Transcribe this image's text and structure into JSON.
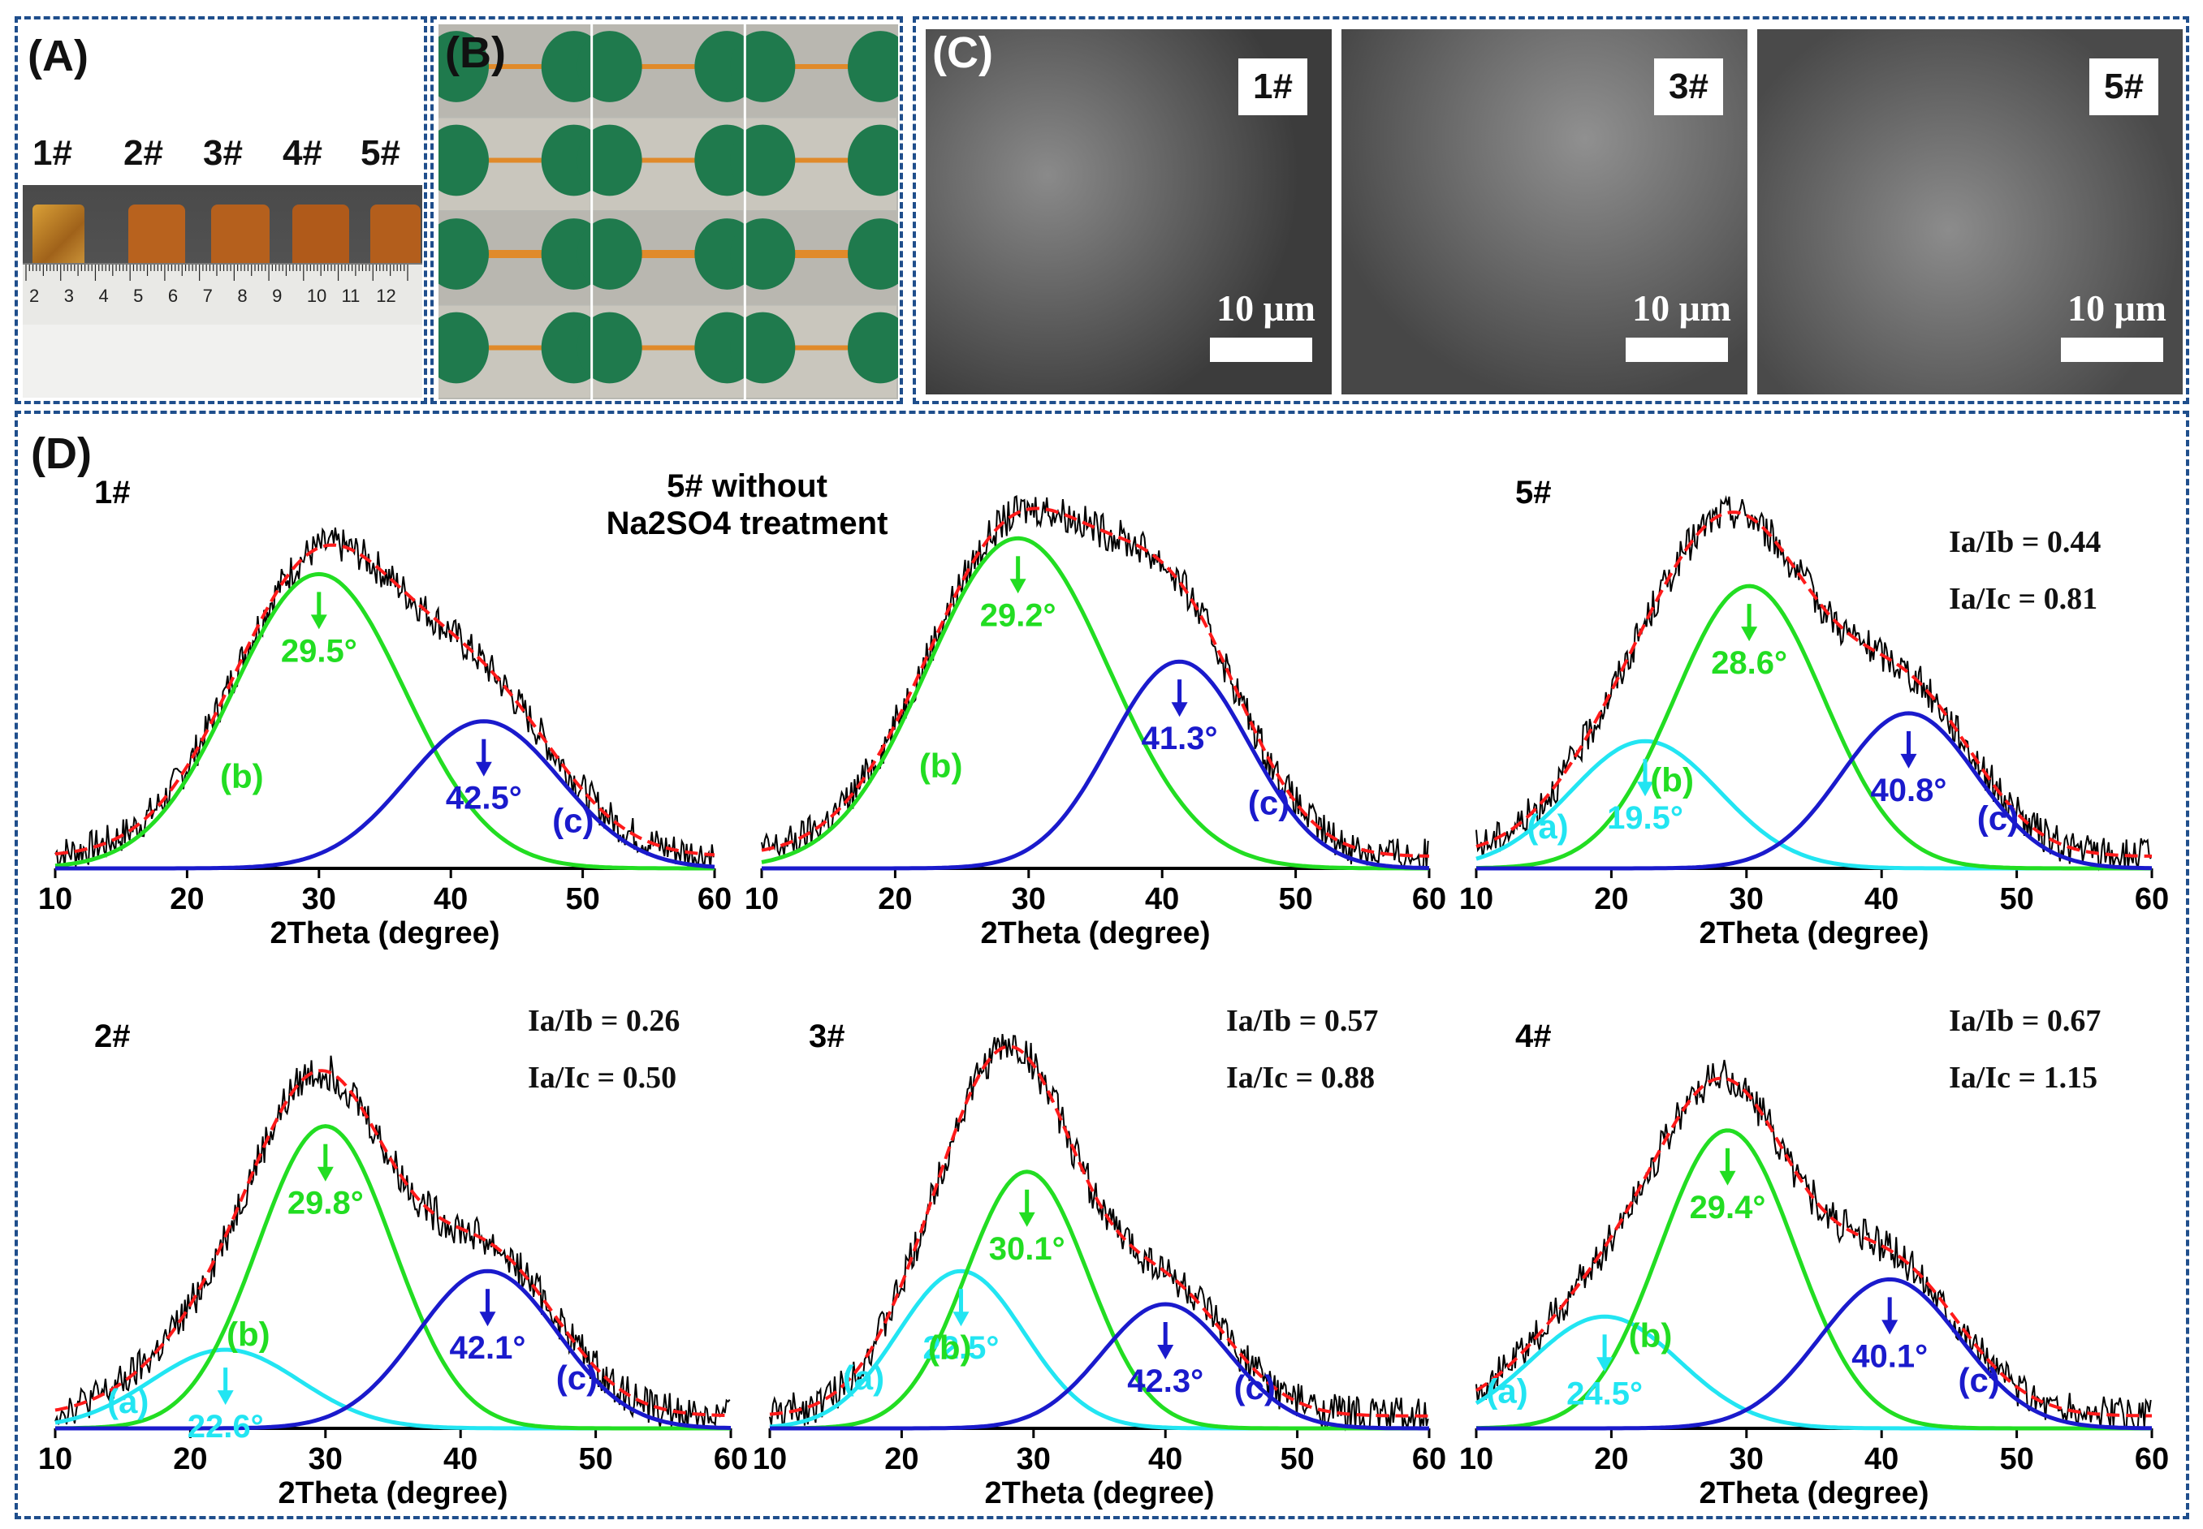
{
  "panels": {
    "A": {
      "label": "(A)",
      "samples": [
        "1#",
        "2#",
        "3#",
        "4#",
        "5#"
      ],
      "ruler_numbers": [
        "2",
        "3",
        "4",
        "5",
        "6",
        "7",
        "8",
        "9",
        "10",
        "11",
        "12"
      ]
    },
    "B": {
      "label": "(B)"
    },
    "C": {
      "label": "(C)",
      "images": [
        {
          "tag": "1#",
          "scale": "10 μm"
        },
        {
          "tag": "3#",
          "scale": "10 μm"
        },
        {
          "tag": "5#",
          "scale": "10 μm"
        }
      ]
    },
    "D": {
      "label": "(D)"
    }
  },
  "colors": {
    "raw": "#000000",
    "fit": "#ff1a1a",
    "peak_a": "#22e5f2",
    "peak_b": "#22dd22",
    "peak_c": "#1a1acc",
    "frame": "#1f4e8c"
  },
  "chart_data": [
    {
      "type": "line",
      "title": "1#",
      "xlabel": "2Theta (degree)",
      "xlim": [
        10,
        60
      ],
      "xticks": [
        10,
        20,
        30,
        40,
        50,
        60
      ],
      "ratios": [],
      "peaks": [
        {
          "id": "b",
          "label": "(b)",
          "position": "29.5°",
          "center": 30.0,
          "sigma": 6.5,
          "height": 0.74
        },
        {
          "id": "c",
          "label": "(c)",
          "position": "42.5°",
          "center": 42.5,
          "sigma": 5.8,
          "height": 0.37
        }
      ]
    },
    {
      "type": "line",
      "title": "5# without Na2SO4 treatment",
      "xlabel": "2Theta (degree)",
      "xlim": [
        10,
        60
      ],
      "xticks": [
        10,
        20,
        30,
        40,
        50,
        60
      ],
      "ratios": [],
      "peaks": [
        {
          "id": "b",
          "label": "(b)",
          "position": "29.2°",
          "center": 29.2,
          "sigma": 6.8,
          "height": 0.83
        },
        {
          "id": "c",
          "label": "(c)",
          "position": "41.3°",
          "center": 41.3,
          "sigma": 5.2,
          "height": 0.52
        }
      ]
    },
    {
      "type": "line",
      "title": "5#",
      "xlabel": "2Theta (degree)",
      "xlim": [
        10,
        60
      ],
      "xticks": [
        10,
        20,
        30,
        40,
        50,
        60
      ],
      "ratios": [
        "Ia/Ib = 0.44",
        "Ia/Ic = 0.81"
      ],
      "peaks": [
        {
          "id": "a",
          "label": "(a)",
          "position": "19.5°",
          "center": 22.5,
          "sigma": 5.5,
          "height": 0.32
        },
        {
          "id": "b",
          "label": "(b)",
          "position": "28.6°",
          "center": 30.2,
          "sigma": 5.5,
          "height": 0.71
        },
        {
          "id": "c",
          "label": "(c)",
          "position": "40.8°",
          "center": 42.0,
          "sigma": 5.0,
          "height": 0.39
        }
      ]
    },
    {
      "type": "line",
      "title": "2#",
      "xlabel": "2Theta (degree)",
      "xlim": [
        10,
        60
      ],
      "xticks": [
        10,
        20,
        30,
        40,
        50,
        60
      ],
      "ratios": [
        "Ia/Ib = 0.26",
        "Ia/Ic = 0.50"
      ],
      "peaks": [
        {
          "id": "a",
          "label": "(a)",
          "position": "22.6°",
          "center": 22.6,
          "sigma": 5.5,
          "height": 0.19
        },
        {
          "id": "b",
          "label": "(b)",
          "position": "29.8°",
          "center": 30.0,
          "sigma": 5.0,
          "height": 0.73
        },
        {
          "id": "c",
          "label": "(c)",
          "position": "42.1°",
          "center": 42.0,
          "sigma": 5.2,
          "height": 0.38
        }
      ]
    },
    {
      "type": "line",
      "title": "3#",
      "xlabel": "2Theta (degree)",
      "xlim": [
        10,
        60
      ],
      "xticks": [
        10,
        20,
        30,
        40,
        50,
        60
      ],
      "ratios": [
        "Ia/Ib = 0.57",
        "Ia/Ic = 0.88"
      ],
      "peaks": [
        {
          "id": "a",
          "label": "(a)",
          "position": "22.5°",
          "center": 24.5,
          "sigma": 4.8,
          "height": 0.38
        },
        {
          "id": "b",
          "label": "(b)",
          "position": "30.1°",
          "center": 29.5,
          "sigma": 4.6,
          "height": 0.62
        },
        {
          "id": "c",
          "label": "(c)",
          "position": "42.3°",
          "center": 40.0,
          "sigma": 4.8,
          "height": 0.3
        }
      ]
    },
    {
      "type": "line",
      "title": "4#",
      "xlabel": "2Theta (degree)",
      "xlim": [
        10,
        60
      ],
      "xticks": [
        10,
        20,
        30,
        40,
        50,
        60
      ],
      "ratios": [
        "Ia/Ib = 0.67",
        "Ia/Ic = 1.15"
      ],
      "peaks": [
        {
          "id": "a",
          "label": "(a)",
          "position": "24.5°",
          "center": 19.5,
          "sigma": 5.5,
          "height": 0.27
        },
        {
          "id": "b",
          "label": "(b)",
          "position": "29.4°",
          "center": 28.6,
          "sigma": 5.0,
          "height": 0.72
        },
        {
          "id": "c",
          "label": "(c)",
          "position": "40.1°",
          "center": 40.6,
          "sigma": 5.2,
          "height": 0.36
        }
      ]
    }
  ]
}
